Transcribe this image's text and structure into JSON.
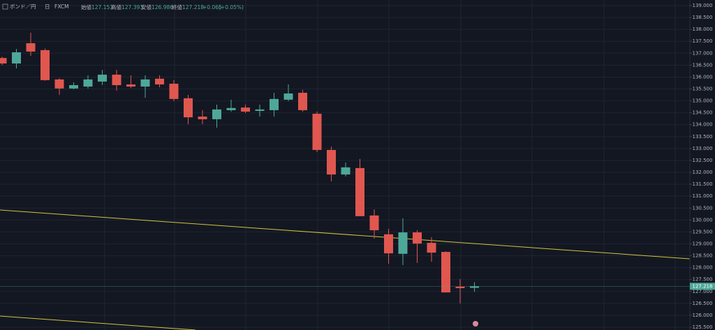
{
  "chart_data": {
    "type": "candlestick",
    "symbol": "ボンド／円",
    "interval": "日",
    "source": "FXCM",
    "labels": {
      "open": "始値",
      "high": "高値",
      "low": "安値",
      "close": "終値"
    },
    "change": "+0.065",
    "change_percent": "(+0.05%)",
    "up_color": "#4ea89a",
    "down_color": "#e0574f",
    "grid": true,
    "series": [
      {
        "open": [
          136.8,
          136.57,
          137.42,
          137.13,
          135.9,
          135.52,
          135.6,
          135.81,
          136.1,
          135.69,
          135.6,
          135.93,
          135.72,
          135.11,
          134.34,
          134.23,
          134.61,
          134.72,
          134.58,
          134.61,
          135.05,
          135.34,
          134.46,
          132.94,
          131.91,
          132.18,
          130.19,
          129.4,
          128.58,
          129.48,
          129.04,
          128.66,
          127.2,
          127.153
        ],
        "high": [
          136.85,
          137.18,
          137.86,
          137.2,
          135.95,
          135.78,
          136.07,
          136.3,
          136.3,
          136.07,
          136.07,
          136.07,
          135.87,
          135.25,
          134.61,
          134.84,
          135.05,
          134.84,
          134.84,
          135.34,
          135.69,
          135.46,
          134.55,
          133.08,
          132.41,
          132.56,
          130.45,
          129.63,
          130.07,
          129.57,
          129.28,
          128.69,
          127.52,
          127.393
        ],
        "low": [
          136.5,
          136.36,
          136.89,
          135.85,
          135.25,
          135.49,
          135.52,
          135.66,
          135.43,
          135.54,
          135.13,
          135.57,
          134.99,
          134.02,
          134.02,
          133.88,
          134.55,
          134.49,
          134.34,
          134.34,
          134.99,
          134.55,
          132.85,
          131.62,
          131.83,
          130.16,
          129.22,
          128.17,
          128.11,
          128.2,
          128.25,
          126.96,
          126.5,
          126.986
        ],
        "close": [
          136.57,
          137.04,
          137.07,
          135.87,
          135.52,
          135.66,
          135.9,
          136.1,
          135.66,
          135.6,
          135.9,
          135.69,
          135.08,
          134.31,
          134.23,
          134.64,
          134.7,
          134.55,
          134.64,
          135.08,
          135.31,
          134.61,
          132.94,
          131.91,
          132.21,
          130.16,
          129.57,
          128.6,
          129.48,
          129.01,
          128.63,
          126.96,
          127.14,
          127.218
        ]
      }
    ],
    "ylim": [
      125.5,
      139.0
    ],
    "yticks": [
      {
        "value": 125.5,
        "label": "125.500"
      },
      {
        "value": 126,
        "label": "126.000"
      },
      {
        "value": 126.5,
        "label": "126.500"
      },
      {
        "value": 127,
        "label": "127.000"
      },
      {
        "value": 127.5,
        "label": "127.500"
      },
      {
        "value": 128,
        "label": "128.000"
      },
      {
        "value": 128.5,
        "label": "128.500"
      },
      {
        "value": 129,
        "label": "129.000"
      },
      {
        "value": 129.5,
        "label": "129.500"
      },
      {
        "value": 130,
        "label": "130.000"
      },
      {
        "value": 130.5,
        "label": "130.500"
      },
      {
        "value": 131,
        "label": "131.000"
      },
      {
        "value": 131.5,
        "label": "131.500"
      },
      {
        "value": 132,
        "label": "132.000"
      },
      {
        "value": 132.5,
        "label": "132.500"
      },
      {
        "value": 133,
        "label": "133.000"
      },
      {
        "value": 133.5,
        "label": "133.500"
      },
      {
        "value": 134,
        "label": "134.000"
      },
      {
        "value": 134.5,
        "label": "134.500"
      },
      {
        "value": 135,
        "label": "135.000"
      },
      {
        "value": 135.5,
        "label": "135.500"
      },
      {
        "value": 136,
        "label": "136.000"
      },
      {
        "value": 136.5,
        "label": "136.500"
      },
      {
        "value": 137,
        "label": "137.000"
      },
      {
        "value": 137.5,
        "label": "137.500"
      },
      {
        "value": 138,
        "label": "138.000"
      },
      {
        "value": 138.5,
        "label": "138.500"
      },
      {
        "value": 139,
        "label": "139.000"
      }
    ]
  }
}
